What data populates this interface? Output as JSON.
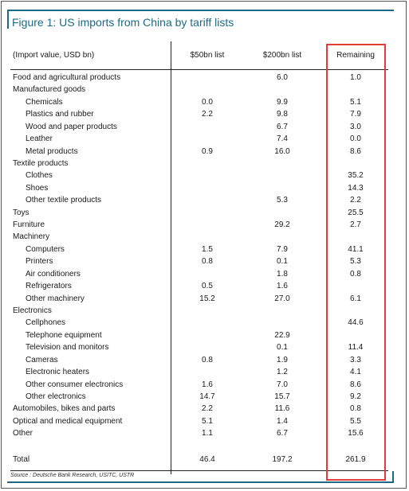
{
  "title": "Figure 1: US imports from China by tariff lists",
  "headers": {
    "label": "(Import value, USD bn)",
    "c1": "$50bn list",
    "c2": "$200bn list",
    "c3": "Remaining"
  },
  "rows": [
    {
      "label": "Food and agricultural products",
      "indent": 0,
      "c1": "",
      "c2": "6.0",
      "c3": "1.0"
    },
    {
      "label": "Manufactured goods",
      "indent": 0,
      "c1": "",
      "c2": "",
      "c3": ""
    },
    {
      "label": "Chemicals",
      "indent": 1,
      "c1": "0.0",
      "c2": "9.9",
      "c3": "5.1"
    },
    {
      "label": "Plastics and rubber",
      "indent": 1,
      "c1": "2.2",
      "c2": "9.8",
      "c3": "7.9"
    },
    {
      "label": "Wood and paper products",
      "indent": 1,
      "c1": "",
      "c2": "6.7",
      "c3": "3.0"
    },
    {
      "label": "Leather",
      "indent": 1,
      "c1": "",
      "c2": "7.4",
      "c3": "0.0"
    },
    {
      "label": "Metal products",
      "indent": 1,
      "c1": "0.9",
      "c2": "16.0",
      "c3": "8.6"
    },
    {
      "label": "Textile products",
      "indent": 0,
      "c1": "",
      "c2": "",
      "c3": ""
    },
    {
      "label": "Clothes",
      "indent": 1,
      "c1": "",
      "c2": "",
      "c3": "35.2"
    },
    {
      "label": "Shoes",
      "indent": 1,
      "c1": "",
      "c2": "",
      "c3": "14.3"
    },
    {
      "label": "Other textile products",
      "indent": 1,
      "c1": "",
      "c2": "5.3",
      "c3": "2.2"
    },
    {
      "label": "Toys",
      "indent": 0,
      "c1": "",
      "c2": "",
      "c3": "25.5"
    },
    {
      "label": "Furniture",
      "indent": 0,
      "c1": "",
      "c2": "29.2",
      "c3": "2.7"
    },
    {
      "label": "Machinery",
      "indent": 0,
      "c1": "",
      "c2": "",
      "c3": ""
    },
    {
      "label": "Computers",
      "indent": 1,
      "c1": "1.5",
      "c2": "7.9",
      "c3": "41.1"
    },
    {
      "label": "Printers",
      "indent": 1,
      "c1": "0.8",
      "c2": "0.1",
      "c3": "5.3"
    },
    {
      "label": "Air conditioners",
      "indent": 1,
      "c1": "",
      "c2": "1.8",
      "c3": "0.8"
    },
    {
      "label": "Refrigerators",
      "indent": 1,
      "c1": "0.5",
      "c2": "1.6",
      "c3": ""
    },
    {
      "label": "Other machinery",
      "indent": 1,
      "c1": "15.2",
      "c2": "27.0",
      "c3": "6.1"
    },
    {
      "label": "Electronics",
      "indent": 0,
      "c1": "",
      "c2": "",
      "c3": ""
    },
    {
      "label": "Cellphones",
      "indent": 1,
      "c1": "",
      "c2": "",
      "c3": "44.6"
    },
    {
      "label": "Telephone equipment",
      "indent": 1,
      "c1": "",
      "c2": "22.9",
      "c3": ""
    },
    {
      "label": "Television and monitors",
      "indent": 1,
      "c1": "",
      "c2": "0.1",
      "c3": "11.4"
    },
    {
      "label": "Cameras",
      "indent": 1,
      "c1": "0.8",
      "c2": "1.9",
      "c3": "3.3"
    },
    {
      "label": "Electronic heaters",
      "indent": 1,
      "c1": "",
      "c2": "1.2",
      "c3": "4.1"
    },
    {
      "label": "Other consumer electronics",
      "indent": 1,
      "c1": "1.6",
      "c2": "7.0",
      "c3": "8.6"
    },
    {
      "label": "Other electronics",
      "indent": 1,
      "c1": "14.7",
      "c2": "15.7",
      "c3": "9.2"
    },
    {
      "label": "Automobiles, bikes and parts",
      "indent": 0,
      "c1": "2.2",
      "c2": "11.6",
      "c3": "0.8"
    },
    {
      "label": "Optical and medical equipment",
      "indent": 0,
      "c1": "5.1",
      "c2": "1.4",
      "c3": "5.5"
    },
    {
      "label": "Other",
      "indent": 0,
      "c1": "1.1",
      "c2": "6.7",
      "c3": "15.6"
    }
  ],
  "total": {
    "label": "Total",
    "c1": "46.4",
    "c2": "197.2",
    "c3": "261.9"
  },
  "source": "Source : Deutsche Bank Research, USITC, USTR",
  "colors": {
    "accent": "#1c6a86",
    "highlight": "#e23b3b"
  }
}
